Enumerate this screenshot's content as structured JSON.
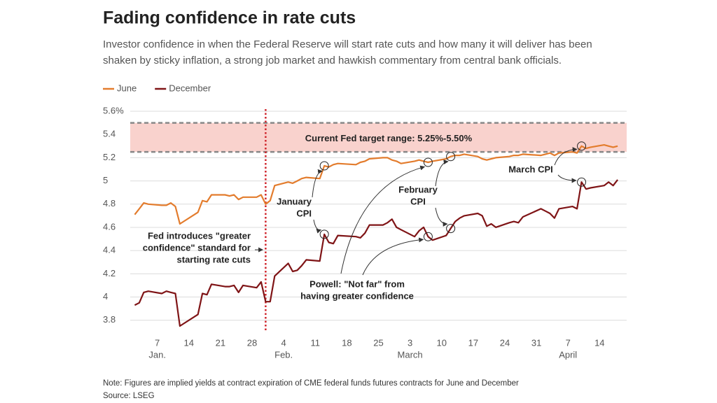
{
  "chart_data": {
    "type": "line",
    "title": "Fading confidence in rate cuts",
    "subtitle": [
      "Investor confidence in when the Federal Reserve will start rate cuts and how many it will deliver has been",
      "shaken by sticky inflation, a strong job market and hawkish commentary from central bank officials."
    ],
    "x": [
      "01-02",
      "01-03",
      "01-04",
      "01-05",
      "01-08",
      "01-09",
      "01-10",
      "01-11",
      "01-12",
      "01-16",
      "01-17",
      "01-18",
      "01-19",
      "01-22",
      "01-23",
      "01-24",
      "01-25",
      "01-26",
      "01-29",
      "01-30",
      "01-31",
      "02-01",
      "02-02",
      "02-05",
      "02-06",
      "02-07",
      "02-08",
      "02-09",
      "02-12",
      "02-13",
      "02-14",
      "02-15",
      "02-16",
      "02-20",
      "02-21",
      "02-22",
      "02-23",
      "02-26",
      "02-27",
      "02-28",
      "02-29",
      "03-01",
      "03-04",
      "03-05",
      "03-06",
      "03-07",
      "03-08",
      "03-11",
      "03-12",
      "03-13",
      "03-14",
      "03-15",
      "03-18",
      "03-19",
      "03-20",
      "03-21",
      "03-22",
      "03-25",
      "03-26",
      "03-27",
      "03-28",
      "04-01",
      "04-02",
      "04-03",
      "04-04",
      "04-05",
      "04-08",
      "04-09",
      "04-10",
      "04-11",
      "04-12",
      "04-15",
      "04-16",
      "04-17",
      "04-18"
    ],
    "series": [
      {
        "name": "June",
        "color": "#e37c2d",
        "values": [
          4.71,
          4.76,
          4.81,
          4.8,
          4.79,
          4.79,
          4.81,
          4.78,
          4.63,
          4.73,
          4.83,
          4.82,
          4.88,
          4.88,
          4.87,
          4.88,
          4.84,
          4.86,
          4.86,
          4.88,
          4.8,
          4.83,
          4.96,
          4.99,
          4.98,
          5.0,
          5.02,
          5.03,
          5.02,
          5.13,
          5.12,
          5.14,
          5.15,
          5.14,
          5.16,
          5.17,
          5.19,
          5.2,
          5.2,
          5.18,
          5.17,
          5.15,
          5.17,
          5.18,
          5.17,
          5.16,
          5.17,
          5.19,
          5.21,
          5.22,
          5.22,
          5.23,
          5.21,
          5.19,
          5.18,
          5.19,
          5.2,
          5.21,
          5.22,
          5.22,
          5.23,
          5.22,
          5.23,
          5.24,
          5.22,
          5.24,
          5.25,
          5.24,
          5.3,
          5.28,
          5.29,
          5.31,
          5.3,
          5.29,
          5.3
        ]
      },
      {
        "name": "December",
        "color": "#7f1416",
        "values": [
          3.93,
          3.95,
          4.04,
          4.05,
          4.03,
          4.05,
          4.04,
          4.03,
          3.75,
          3.85,
          4.03,
          4.02,
          4.11,
          4.09,
          4.09,
          4.1,
          4.04,
          4.1,
          4.08,
          4.13,
          3.96,
          3.96,
          4.18,
          4.29,
          4.22,
          4.23,
          4.27,
          4.32,
          4.31,
          4.54,
          4.47,
          4.46,
          4.53,
          4.52,
          4.51,
          4.55,
          4.62,
          4.62,
          4.64,
          4.67,
          4.6,
          4.58,
          4.52,
          4.57,
          4.6,
          4.52,
          4.49,
          4.53,
          4.59,
          4.65,
          4.68,
          4.7,
          4.72,
          4.7,
          4.61,
          4.63,
          4.6,
          4.64,
          4.65,
          4.64,
          4.69,
          4.76,
          4.74,
          4.72,
          4.68,
          4.76,
          4.78,
          4.76,
          4.99,
          4.93,
          4.94,
          4.96,
          4.99,
          4.96,
          5.01
        ]
      }
    ],
    "xlim": [
      "01-01",
      "04-20"
    ],
    "xticks": [
      {
        "value": "01-07",
        "label": "7"
      },
      {
        "value": "01-14",
        "label": "14"
      },
      {
        "value": "01-21",
        "label": "21"
      },
      {
        "value": "01-28",
        "label": "28"
      },
      {
        "value": "02-04",
        "label": "4"
      },
      {
        "value": "02-11",
        "label": "11"
      },
      {
        "value": "02-18",
        "label": "18"
      },
      {
        "value": "02-25",
        "label": "25"
      },
      {
        "value": "03-03",
        "label": "3"
      },
      {
        "value": "03-10",
        "label": "10"
      },
      {
        "value": "03-17",
        "label": "17"
      },
      {
        "value": "03-24",
        "label": "24"
      },
      {
        "value": "03-31",
        "label": "31"
      },
      {
        "value": "04-07",
        "label": "7"
      },
      {
        "value": "04-14",
        "label": "14"
      }
    ],
    "x_month_labels": [
      {
        "value": "01-07",
        "label": "Jan."
      },
      {
        "value": "02-04",
        "label": "Feb."
      },
      {
        "value": "03-03",
        "label": "March"
      },
      {
        "value": "04-07",
        "label": "April"
      }
    ],
    "ylim": [
      3.75,
      5.6
    ],
    "yticks": [
      {
        "value": 5.6,
        "label": "5.6%"
      },
      5.4,
      5.2,
      5,
      4.8,
      4.6,
      4.4,
      4.2,
      4,
      3.8
    ],
    "grid": true,
    "target_range": {
      "label": "Current Fed target range: 5.25%-5.50%",
      "values": [
        5.25,
        5.5
      ]
    },
    "event": {
      "x": "01-31",
      "lines": [
        "Fed introduces \"greater",
        "confidence\" standard for",
        "starting rate cuts"
      ]
    },
    "annotations": [
      {
        "lines": [
          "January",
          "CPI"
        ],
        "x": "02-13"
      },
      {
        "lines": [
          "February",
          "CPI"
        ],
        "x": "03-12"
      },
      {
        "lines": [
          "March CPI"
        ],
        "x": "04-10"
      },
      {
        "lines": [
          "Powell: \"Not far\" from",
          "having greater confidence"
        ],
        "x": "03-07"
      }
    ],
    "notes": [
      "Note: Figures are implied yields at contract expiration of CME federal funds futures contracts for June and December",
      "Source: LSEG"
    ]
  }
}
